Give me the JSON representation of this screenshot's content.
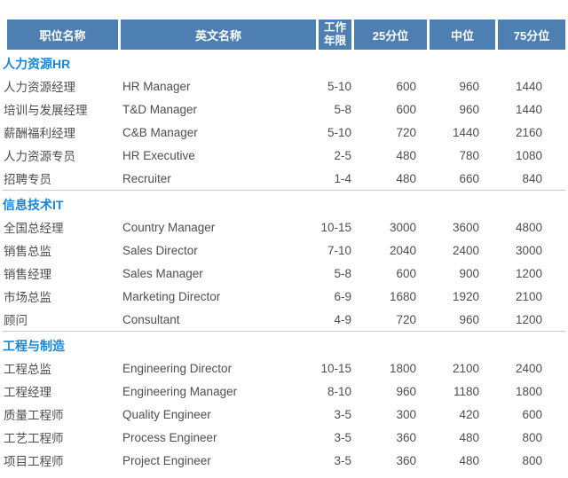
{
  "table": {
    "columns": [
      "职位名称",
      "英文名称",
      "工作\n年限",
      "25分位",
      "中位",
      "75分位"
    ],
    "sections": [
      {
        "title": "人力资源HR",
        "rows": [
          [
            "人力资源经理",
            "HR Manager",
            "5-10",
            "600",
            "960",
            "1440"
          ],
          [
            "培训与发展经理",
            "T&D Manager",
            "5-8",
            "600",
            "960",
            "1440"
          ],
          [
            "薪酬福利经理",
            "C&B Manager",
            "5-10",
            "720",
            "1440",
            "2160"
          ],
          [
            "人力资源专员",
            "HR Executive",
            "2-5",
            "480",
            "780",
            "1080"
          ],
          [
            "招聘专员",
            "Recruiter",
            "1-4",
            "480",
            "660",
            "840"
          ]
        ]
      },
      {
        "title": "信息技术IT",
        "rows": [
          [
            "全国总经理",
            "Country Manager",
            "10-15",
            "3000",
            "3600",
            "4800"
          ],
          [
            "销售总监",
            "Sales Director",
            "7-10",
            "2040",
            "2400",
            "3000"
          ],
          [
            "销售经理",
            "Sales Manager",
            "5-8",
            "600",
            "900",
            "1200"
          ],
          [
            "市场总监",
            "Marketing Director",
            "6-9",
            "1680",
            "1920",
            "2100"
          ],
          [
            "顾问",
            "Consultant",
            "4-9",
            "720",
            "960",
            "1200"
          ]
        ]
      },
      {
        "title": "工程与制造",
        "rows": [
          [
            "工程总监",
            "Engineering Director",
            "10-15",
            "1800",
            "2100",
            "2400"
          ],
          [
            "工程经理",
            "Engineering Manager",
            "8-10",
            "960",
            "1180",
            "1800"
          ],
          [
            "质量工程师",
            "Quality Engineer",
            "3-5",
            "300",
            "420",
            "600"
          ],
          [
            "工艺工程师",
            "Process Engineer",
            "3-5",
            "360",
            "480",
            "800"
          ],
          [
            "项目工程师",
            "Project Engineer",
            "3-5",
            "360",
            "480",
            "800"
          ]
        ]
      }
    ]
  },
  "colors": {
    "header_bg": "#4e7fb3",
    "header_text": "#ffffff",
    "section_text": "#1a87d6",
    "body_text": "#4e4e4e",
    "divider": "#c9c9c9"
  }
}
